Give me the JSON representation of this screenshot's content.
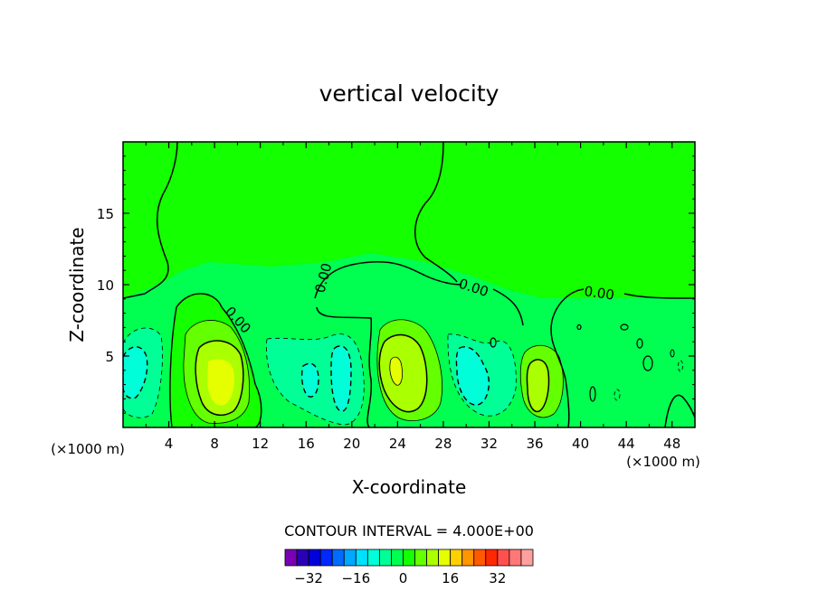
{
  "chart_data": {
    "type": "contour",
    "title": "vertical velocity",
    "xlabel": "X-coordinate",
    "ylabel": "Z-coordinate",
    "x_unit": "(×1000 m)",
    "xlim": [
      0,
      50
    ],
    "ylim": [
      0,
      20
    ],
    "x_ticks": [
      4,
      8,
      12,
      16,
      20,
      24,
      28,
      32,
      36,
      40,
      44,
      48
    ],
    "y_ticks": [
      5,
      10,
      15
    ],
    "contour_interval_text": "CONTOUR INTERVAL = 4.000E+00",
    "contour_interval": 4,
    "zero_contour_labels": [
      "0.00",
      "0.00",
      "0.00",
      "0.00"
    ],
    "colorbar": {
      "tick_labels": [
        "−32",
        "−16",
        "0",
        "16",
        "32"
      ],
      "tick_values": [
        -32,
        -16,
        0,
        16,
        32
      ],
      "colors": [
        "#7a00b4",
        "#2a00b4",
        "#0000d8",
        "#0028ff",
        "#006cff",
        "#00a8ff",
        "#00e0ff",
        "#00ffd8",
        "#00ff96",
        "#00ff50",
        "#14ff00",
        "#64ff00",
        "#aaff00",
        "#e6ff00",
        "#ffd000",
        "#ff9600",
        "#ff5a00",
        "#ff2800",
        "#ff5050",
        "#ff7878",
        "#ffa0a0"
      ]
    },
    "features": [
      {
        "kind": "updraft",
        "x": 8,
        "z": 3.8,
        "peak": 12
      },
      {
        "kind": "updraft",
        "x": 23.7,
        "z": 4.0,
        "peak": 12
      },
      {
        "kind": "updraft",
        "x": 36.2,
        "z": 3.2,
        "peak": 8
      },
      {
        "kind": "downdraft",
        "x": 0.8,
        "z": 3.6,
        "peak": -8
      },
      {
        "kind": "downdraft",
        "x": 16,
        "z": 3.5,
        "peak": -4
      },
      {
        "kind": "downdraft",
        "x": 18.8,
        "z": 3.2,
        "peak": -8
      },
      {
        "kind": "downdraft",
        "x": 30.5,
        "z": 3.5,
        "peak": -8
      }
    ]
  }
}
